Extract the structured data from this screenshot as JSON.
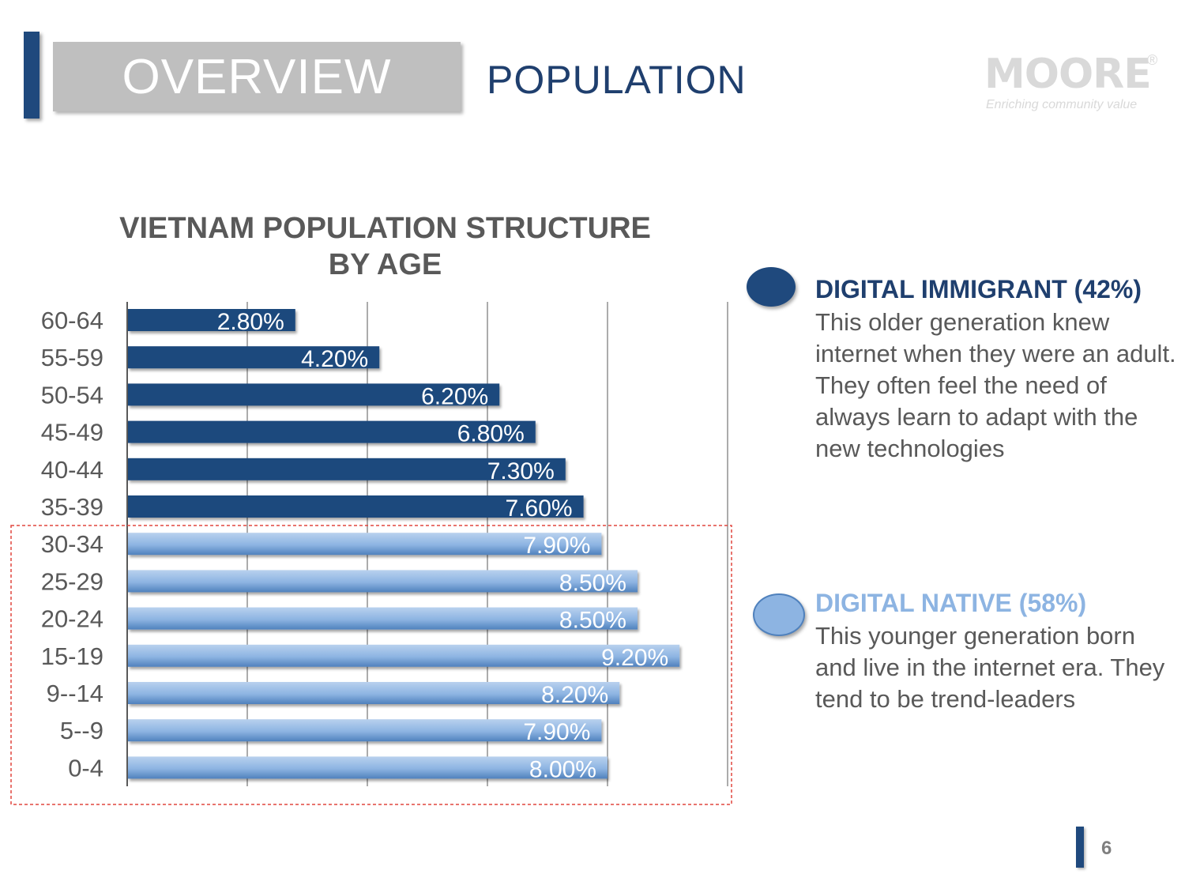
{
  "header": {
    "section_label": "OVERVIEW",
    "title": "POPULATION"
  },
  "logo": {
    "text": "MOORE",
    "tagline": "Enriching community value",
    "registered": "®"
  },
  "chart_data": {
    "type": "bar",
    "orientation": "horizontal",
    "title": "VIETNAM POPULATION STRUCTURE BY AGE",
    "title_lines": [
      "VIETNAM POPULATION STRUCTURE",
      "BY AGE"
    ],
    "categories": [
      "60-64",
      "55-59",
      "50-54",
      "45-49",
      "40-44",
      "35-39",
      "30-34",
      "25-29",
      "20-24",
      "15-19",
      "9--14",
      "5--9",
      "0-4"
    ],
    "values": [
      2.8,
      4.2,
      6.2,
      6.8,
      7.3,
      7.6,
      7.9,
      8.5,
      8.5,
      9.2,
      8.2,
      7.9,
      8.0
    ],
    "value_labels": [
      "2.80%",
      "4.20%",
      "6.20%",
      "6.80%",
      "7.30%",
      "7.60%",
      "7.90%",
      "8.50%",
      "8.50%",
      "9.20%",
      "8.20%",
      "7.90%",
      "8.00%"
    ],
    "groups": [
      "immigrant",
      "immigrant",
      "immigrant",
      "immigrant",
      "immigrant",
      "immigrant",
      "native",
      "native",
      "native",
      "native",
      "native",
      "native",
      "native"
    ],
    "xlim": [
      0,
      10
    ],
    "x_gridlines": [
      0,
      2,
      4,
      6,
      8,
      10
    ],
    "grid": true,
    "xlabel": "",
    "ylabel": "",
    "highlight_box": "around ages 0-34 (digital native)"
  },
  "colors": {
    "immigrant": "#1f497d",
    "native": "#8db4e2",
    "native_dark": "#4f81bd",
    "native_text": "#8db4e2",
    "immigrant_text": "#1f3f6e",
    "highlight": "#e0463f"
  },
  "legend": {
    "immigrant": {
      "heading": "DIGITAL IMMIGRANT (42%)",
      "description": "This older generation knew internet when they were an adult. They often feel the need of always learn to adapt with the new technologies"
    },
    "native": {
      "heading": "DIGITAL NATIVE (58%)",
      "description": "This younger generation born and live in the internet era. They tend to be trend-leaders"
    }
  },
  "footer": {
    "page_number": "6"
  }
}
